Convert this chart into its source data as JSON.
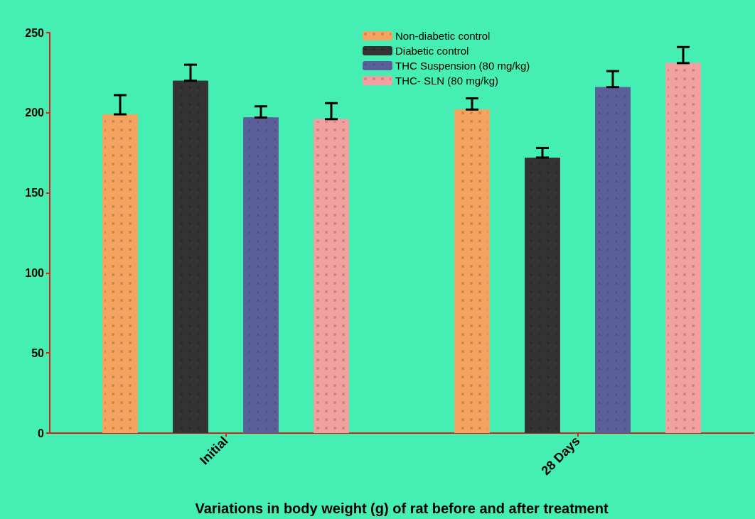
{
  "chart_data": {
    "type": "bar",
    "xlabel": "Variations in body weight (g) of rat before and after treatment",
    "categories": [
      "Initial",
      "28 Days"
    ],
    "series": [
      {
        "name": "Non-diabetic control",
        "color": "#f4a460",
        "values": [
          199,
          202
        ],
        "errors": [
          [
            199,
            211
          ],
          [
            202,
            209
          ]
        ]
      },
      {
        "name": "Diabetic control",
        "color": "#333333",
        "values": [
          220,
          172
        ],
        "errors": [
          [
            220,
            230
          ],
          [
            172,
            178
          ]
        ]
      },
      {
        "name": "THC Suspension (80 mg/kg)",
        "color": "#5b5f99",
        "values": [
          197,
          216
        ],
        "errors": [
          [
            197,
            204
          ],
          [
            216,
            226
          ]
        ]
      },
      {
        "name": "THC- SLN (80 mg/kg)",
        "color": "#f2a0a0",
        "values": [
          196,
          231
        ],
        "errors": [
          [
            196,
            206
          ],
          [
            231,
            241
          ]
        ]
      }
    ],
    "ylim": [
      0,
      250
    ],
    "yticks": [
      0,
      50,
      100,
      150,
      200,
      250
    ],
    "grid": false,
    "legend": "top right"
  }
}
